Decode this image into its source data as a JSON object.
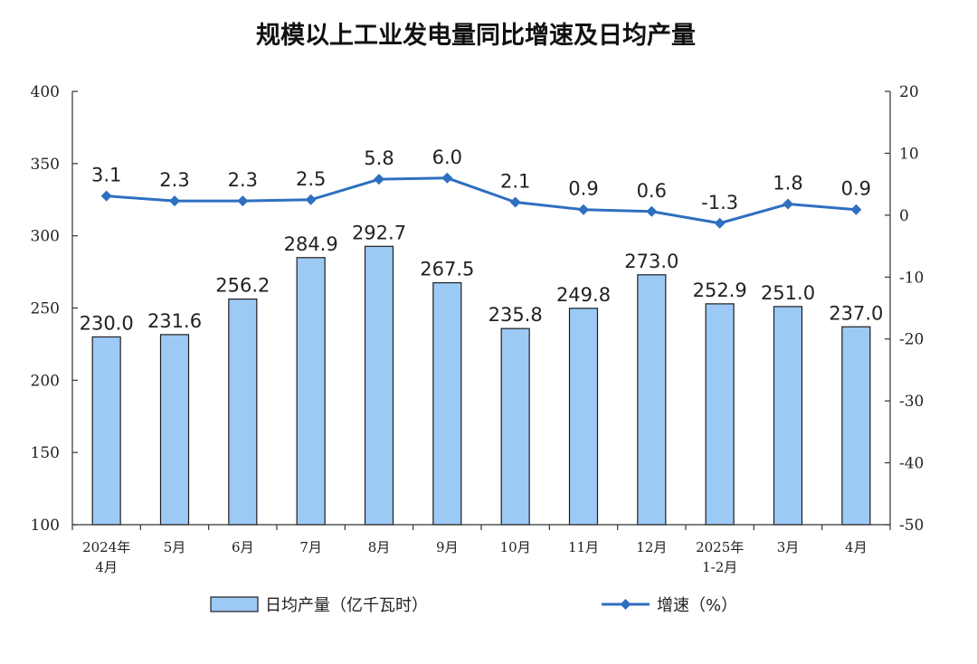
{
  "chart_data": {
    "title": "规模以上工业发电量同比增速及日均产量",
    "type": "bar+line",
    "categories": [
      [
        "2024年",
        "4月"
      ],
      [
        "5月"
      ],
      [
        "6月"
      ],
      [
        "7月"
      ],
      [
        "8月"
      ],
      [
        "9月"
      ],
      [
        "10月"
      ],
      [
        "11月"
      ],
      [
        "12月"
      ],
      [
        "2025年",
        "1-2月"
      ],
      [
        "3月"
      ],
      [
        "4月"
      ]
    ],
    "series": [
      {
        "name": "日均产量（亿千瓦时）",
        "type": "bar",
        "axis": "left",
        "values": [
          230.0,
          231.6,
          256.2,
          284.9,
          292.7,
          267.5,
          235.8,
          249.8,
          273.0,
          252.9,
          251.0,
          237.0
        ],
        "labels": [
          "230.0",
          "231.6",
          "256.2",
          "284.9",
          "292.7",
          "267.5",
          "235.8",
          "249.8",
          "273.0",
          "252.9",
          "251.0",
          "237.0"
        ]
      },
      {
        "name": "增速（%）",
        "type": "line",
        "axis": "right",
        "values": [
          3.1,
          2.3,
          2.3,
          2.5,
          5.8,
          6.0,
          2.1,
          0.9,
          0.6,
          -1.3,
          1.8,
          0.9
        ],
        "labels": [
          "3.1",
          "2.3",
          "2.3",
          "2.5",
          "5.8",
          "6.0",
          "2.1",
          "0.9",
          "0.6",
          "-1.3",
          "1.8",
          "0.9"
        ]
      }
    ],
    "left_axis": {
      "min": 100,
      "max": 400,
      "ticks": [
        "100",
        "150",
        "200",
        "250",
        "300",
        "350",
        "400"
      ]
    },
    "right_axis": {
      "min": -50,
      "max": 20,
      "ticks": [
        "-50",
        "-40",
        "-30",
        "-20",
        "-10",
        "0",
        "10",
        "20"
      ]
    },
    "legend_position": "bottom-center",
    "grid": false,
    "colors": {
      "bar_fill": "#9dc9f5",
      "bar_stroke": "#1f1f1f",
      "line": "#2e6fc0",
      "axis": "#333333"
    }
  }
}
